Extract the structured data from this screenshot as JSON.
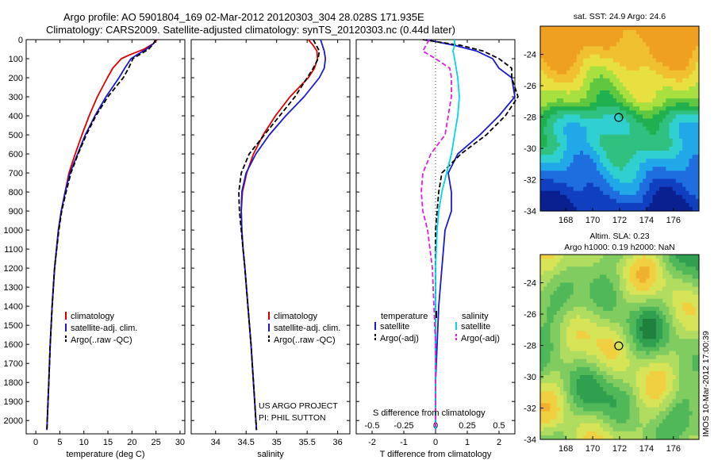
{
  "header": {
    "line1": "Argo profile: AO 5901804_169 02-Mar-2012 20120303_304 28.028S 171.935E",
    "line2": "Climatology: CARS2009. Satellite-adjusted climatology: synTS_20120303.nc (0.44d later)"
  },
  "colors": {
    "climatology": "#e00000",
    "satellite": "#1a1ad0",
    "argo": "#000000",
    "sat_salinity": "#00d8e8",
    "argo_salinity": "#e020e0"
  },
  "chart_data": [
    {
      "id": "temperature",
      "type": "line",
      "xlabel": "temperature (deg C)",
      "xlim": [
        -2,
        31
      ],
      "ylim": [
        2070,
        0
      ],
      "xticks": [
        0,
        5,
        10,
        15,
        20,
        25,
        30
      ],
      "yticks": [
        0,
        100,
        200,
        300,
        400,
        500,
        600,
        700,
        800,
        900,
        1000,
        1100,
        1200,
        1300,
        1400,
        1500,
        1600,
        1700,
        1800,
        1900,
        2000
      ],
      "y": [
        0,
        20,
        50,
        80,
        100,
        150,
        200,
        300,
        400,
        500,
        600,
        700,
        800,
        900,
        1000,
        1200,
        1400,
        1600,
        1800,
        2050
      ],
      "series": [
        {
          "name": "climatology",
          "values": [
            25.2,
            24.5,
            22.5,
            19.5,
            17.8,
            16.0,
            14.9,
            12.8,
            11.1,
            9.6,
            8.2,
            6.9,
            6.1,
            5.3,
            4.7,
            3.9,
            3.4,
            3.0,
            2.7,
            2.3
          ]
        },
        {
          "name": "satellite-adj. clim.",
          "values": [
            25.0,
            24.5,
            23.0,
            21.0,
            19.8,
            18.5,
            17.3,
            14.6,
            12.3,
            10.3,
            8.7,
            7.1,
            6.1,
            5.3,
            4.7,
            3.9,
            3.4,
            3.0,
            2.7,
            2.3
          ]
        },
        {
          "name": "Argo(..raw -QC)",
          "values": [
            24.9,
            24.5,
            23.5,
            21.5,
            20.2,
            19.3,
            18.2,
            15.0,
            12.5,
            10.5,
            8.8,
            7.3,
            6.3,
            5.4,
            4.8,
            3.9,
            3.4,
            3.0,
            2.7,
            2.3
          ]
        }
      ],
      "legend": [
        "climatology",
        "satellite-adj. clim.",
        "Argo(..raw -QC)"
      ]
    },
    {
      "id": "salinity",
      "type": "line",
      "xlabel": "salinity",
      "xlim": [
        33.6,
        36.2
      ],
      "ylim": [
        2070,
        0
      ],
      "xticks": [
        34,
        34.5,
        35,
        35.5,
        36
      ],
      "y": [
        0,
        30,
        60,
        100,
        150,
        200,
        300,
        400,
        500,
        600,
        700,
        800,
        900,
        1000,
        1100,
        1200,
        1400,
        1600,
        1800,
        2050
      ],
      "series": [
        {
          "name": "climatology",
          "values": [
            35.52,
            35.6,
            35.66,
            35.67,
            35.62,
            35.52,
            35.22,
            34.98,
            34.78,
            34.62,
            34.51,
            34.44,
            34.42,
            34.43,
            34.45,
            34.48,
            34.53,
            34.58,
            34.62,
            34.67
          ]
        },
        {
          "name": "satellite-adj. clim.",
          "values": [
            35.72,
            35.75,
            35.78,
            35.8,
            35.78,
            35.7,
            35.45,
            35.15,
            34.88,
            34.66,
            34.5,
            34.43,
            34.42,
            34.43,
            34.45,
            34.48,
            34.53,
            34.58,
            34.62,
            34.67
          ]
        },
        {
          "name": "Argo(..raw -QC)",
          "values": [
            35.6,
            35.65,
            35.7,
            35.68,
            35.6,
            35.5,
            35.3,
            35.05,
            34.8,
            34.55,
            34.42,
            34.38,
            34.39,
            34.42,
            34.45,
            34.48,
            34.53,
            34.58,
            34.62,
            34.67
          ]
        }
      ],
      "legend": [
        "climatology",
        "satellite-adj. clim.",
        "Argo(..raw -QC)"
      ],
      "annotation": [
        "US ARGO PROJECT",
        "PI: PHIL SUTTON"
      ]
    },
    {
      "id": "difference",
      "type": "line",
      "xlabel": "T difference from climatology",
      "xlabel2": "S difference from climatology",
      "xlim": [
        -2.5,
        2.5
      ],
      "ylim": [
        2070,
        0
      ],
      "xticks_T": [
        -2,
        -1,
        0,
        1,
        2
      ],
      "xticks_S": [
        "-0.5",
        "-0.25",
        "0",
        "0.25",
        "0.5"
      ],
      "y": [
        0,
        30,
        60,
        100,
        150,
        200,
        300,
        400,
        500,
        600,
        700,
        800,
        900,
        1000,
        1200,
        1400,
        1600,
        1800,
        2050
      ],
      "series": [
        {
          "name": "temperature satellite",
          "values": [
            -0.3,
            0.6,
            1.3,
            1.8,
            2.0,
            2.4,
            2.5,
            2.0,
            1.4,
            0.7,
            0.4,
            0.5,
            0.5,
            0.3,
            0.2,
            0.1,
            0.05,
            0.0,
            0.0
          ]
        },
        {
          "name": "temperature Argo(-adj)",
          "values": [
            -0.4,
            0.8,
            1.5,
            2.0,
            2.4,
            2.4,
            2.6,
            2.2,
            1.6,
            0.8,
            0.2,
            0.1,
            0.05,
            0.0,
            0.0,
            0.0,
            0.0,
            0.0,
            0.0
          ]
        },
        {
          "name": "salinity satellite",
          "values": [
            0.6,
            0.6,
            0.55,
            0.6,
            0.65,
            0.7,
            0.75,
            0.7,
            0.6,
            0.5,
            0.35,
            0.2,
            0.1,
            0.05,
            0.0,
            0.0,
            0.0,
            0.0,
            0.0
          ]
        },
        {
          "name": "salinity Argo(-adj)",
          "values": [
            -0.2,
            -0.3,
            -0.4,
            0.0,
            0.45,
            0.5,
            0.5,
            0.4,
            0.3,
            -0.15,
            -0.4,
            -0.45,
            -0.4,
            -0.25,
            -0.1,
            -0.05,
            0.0,
            0.0,
            0.0
          ]
        }
      ],
      "legend_headers": [
        "temperature",
        "salinity"
      ],
      "legend_T": [
        "satellite",
        "Argo(-adj)"
      ],
      "legend_S": [
        "satellite",
        "Argo(-adj)"
      ]
    },
    {
      "id": "sst_map",
      "type": "heatmap",
      "title": "sat. SST: 24.9  Argo: 24.6",
      "xlim": [
        166.1,
        177.9
      ],
      "ylim": [
        -34,
        -22.2
      ],
      "xticks": [
        168,
        170,
        172,
        174,
        176
      ],
      "yticks": [
        -24,
        -26,
        -28,
        -30,
        -32,
        -34
      ],
      "marker": [
        171.935,
        -28.028
      ]
    },
    {
      "id": "sla_map",
      "type": "heatmap",
      "title": "Altim. SLA: 0.23",
      "subtitle": "Argo h1000: 0.19 h2000: NaN",
      "xlim": [
        166.1,
        177.9
      ],
      "ylim": [
        -34,
        -22.2
      ],
      "xticks": [
        168,
        170,
        172,
        174,
        176
      ],
      "yticks": [
        -24,
        -26,
        -28,
        -30,
        -32,
        -34
      ],
      "marker": [
        171.935,
        -28.028
      ]
    }
  ],
  "footer": {
    "stamp": "IMOS 10-Mar-2012 17:00:39"
  }
}
